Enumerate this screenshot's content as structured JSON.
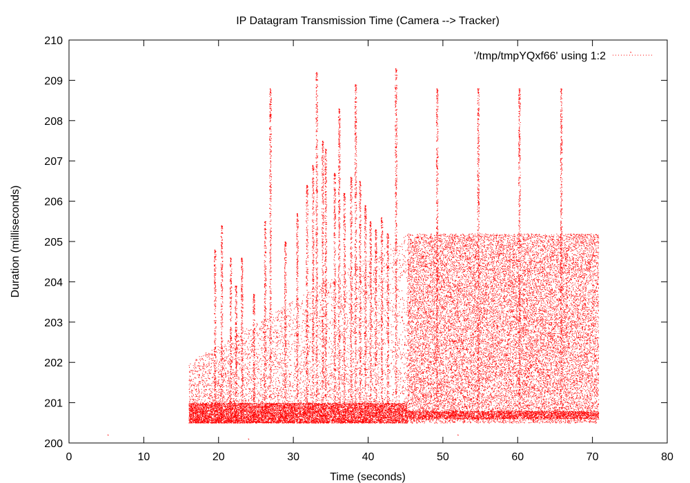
{
  "chart_data": {
    "type": "scatter",
    "title": "IP Datagram Transmission Time (Camera --> Tracker)",
    "xlabel": "Time (seconds)",
    "ylabel": "Duration (milliseconds)",
    "xlim": [
      0,
      80
    ],
    "ylim": [
      200,
      210
    ],
    "x_ticks": [
      0,
      10,
      20,
      30,
      40,
      50,
      60,
      70,
      80
    ],
    "y_ticks": [
      200,
      201,
      202,
      203,
      204,
      205,
      206,
      207,
      208,
      209,
      210
    ],
    "grid": false,
    "legend_position": "top-right",
    "series": [
      {
        "name": "'/tmp/tmpYQxf66' using 1:2",
        "color": "#ff0000",
        "marker": "dot",
        "phases": [
          {
            "x_range": [
              16,
              45.2
            ],
            "y_floor": 200.5,
            "dense_band": [
              200.5,
              201.0
            ],
            "description_values": "irregular burst spikes"
          },
          {
            "x_range": [
              45.2,
              70.8
            ],
            "y_floor": 200.5,
            "y_ceiling": 205.2,
            "dense_band": [
              200.6,
              200.8
            ]
          }
        ],
        "spikes": [
          {
            "x": 19.5,
            "y": 204.8
          },
          {
            "x": 20.4,
            "y": 205.4
          },
          {
            "x": 21.6,
            "y": 204.6
          },
          {
            "x": 22.3,
            "y": 203.9
          },
          {
            "x": 23.1,
            "y": 204.6
          },
          {
            "x": 24.7,
            "y": 203.7
          },
          {
            "x": 26.2,
            "y": 205.5
          },
          {
            "x": 26.9,
            "y": 208.8
          },
          {
            "x": 28.9,
            "y": 205.0
          },
          {
            "x": 30.5,
            "y": 205.7
          },
          {
            "x": 31.8,
            "y": 206.4
          },
          {
            "x": 32.6,
            "y": 206.9
          },
          {
            "x": 33.1,
            "y": 209.2
          },
          {
            "x": 33.9,
            "y": 207.5
          },
          {
            "x": 34.3,
            "y": 207.3
          },
          {
            "x": 35.5,
            "y": 206.7
          },
          {
            "x": 36.1,
            "y": 208.3
          },
          {
            "x": 36.8,
            "y": 206.2
          },
          {
            "x": 37.7,
            "y": 206.6
          },
          {
            "x": 38.3,
            "y": 208.9
          },
          {
            "x": 38.9,
            "y": 206.5
          },
          {
            "x": 39.6,
            "y": 205.9
          },
          {
            "x": 40.3,
            "y": 205.5
          },
          {
            "x": 41.0,
            "y": 205.3
          },
          {
            "x": 41.8,
            "y": 205.6
          },
          {
            "x": 42.6,
            "y": 205.2
          },
          {
            "x": 43.7,
            "y": 209.3
          },
          {
            "x": 49.2,
            "y": 208.8
          },
          {
            "x": 54.7,
            "y": 208.8
          },
          {
            "x": 60.2,
            "y": 208.8
          },
          {
            "x": 65.8,
            "y": 208.8
          }
        ],
        "outliers": [
          {
            "x": 5.2,
            "y": 200.2
          },
          {
            "x": 24.0,
            "y": 200.1
          },
          {
            "x": 52.0,
            "y": 200.2
          },
          {
            "x": 75.1,
            "y": 209.7
          }
        ]
      }
    ]
  }
}
